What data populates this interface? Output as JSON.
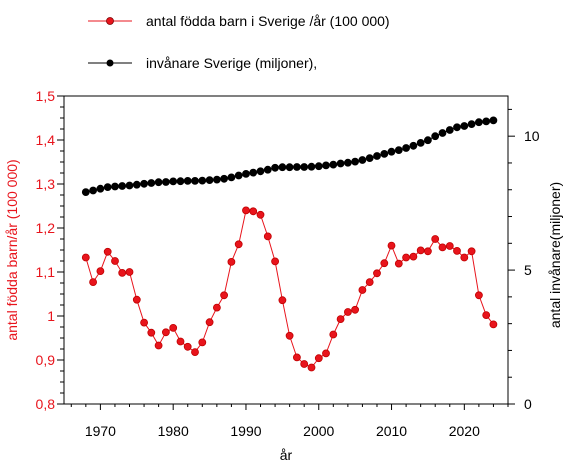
{
  "chart_data": {
    "type": "line",
    "xlabel": "år",
    "ylabel_left": "antal födda barn/år (100 000)",
    "ylabel_right": "antal invånare(miljoner)",
    "xlim": [
      1965,
      2026
    ],
    "ylim_left": [
      0.8,
      1.5
    ],
    "ylim_right": [
      0,
      11.5
    ],
    "x_ticks": [
      1970,
      1980,
      1990,
      2000,
      2010,
      2020
    ],
    "y_ticks_left": [
      "0,8",
      "0,9",
      "1",
      "1,1",
      "1,2",
      "1,3",
      "1,4",
      "1,5"
    ],
    "y_tick_values_left": [
      0.8,
      0.9,
      1.0,
      1.1,
      1.2,
      1.3,
      1.4,
      1.5
    ],
    "y_ticks_right": [
      "0",
      "5",
      "10"
    ],
    "y_tick_values_right": [
      0,
      5,
      10
    ],
    "legend_placement": "top-left",
    "grid": false,
    "colors": {
      "births": "#e8141c",
      "births_marker": "#c00000",
      "population": "#000000",
      "left_axis": "#e8141c"
    },
    "series": [
      {
        "name": "antal födda barn i Sverige /år (100 000)",
        "axis": "left",
        "x": [
          1968,
          1969,
          1970,
          1971,
          1972,
          1973,
          1974,
          1975,
          1976,
          1977,
          1978,
          1979,
          1980,
          1981,
          1982,
          1983,
          1984,
          1985,
          1986,
          1987,
          1988,
          1989,
          1990,
          1991,
          1992,
          1993,
          1994,
          1995,
          1996,
          1997,
          1998,
          1999,
          2000,
          2001,
          2002,
          2003,
          2004,
          2005,
          2006,
          2007,
          2008,
          2009,
          2010,
          2011,
          2012,
          2013,
          2014,
          2015,
          2016,
          2017,
          2018,
          2019,
          2020,
          2021,
          2022,
          2023,
          2024
        ],
        "values": [
          1.133,
          1.077,
          1.102,
          1.146,
          1.125,
          1.098,
          1.1,
          1.037,
          0.985,
          0.962,
          0.933,
          0.963,
          0.973,
          0.942,
          0.93,
          0.918,
          0.94,
          0.986,
          1.019,
          1.047,
          1.123,
          1.163,
          1.24,
          1.238,
          1.23,
          1.181,
          1.124,
          1.036,
          0.955,
          0.906,
          0.891,
          0.883,
          0.904,
          0.915,
          0.958,
          0.993,
          1.009,
          1.014,
          1.059,
          1.077,
          1.097,
          1.12,
          1.16,
          1.119,
          1.133,
          1.135,
          1.149,
          1.147,
          1.175,
          1.156,
          1.159,
          1.148,
          1.133,
          1.147,
          1.047,
          1.002,
          0.981
        ]
      },
      {
        "name": "invånare Sverige (miljoner),",
        "axis": "right",
        "x": [
          1968,
          1969,
          1970,
          1971,
          1972,
          1973,
          1974,
          1975,
          1976,
          1977,
          1978,
          1979,
          1980,
          1981,
          1982,
          1983,
          1984,
          1985,
          1986,
          1987,
          1988,
          1989,
          1990,
          1991,
          1992,
          1993,
          1994,
          1995,
          1996,
          1997,
          1998,
          1999,
          2000,
          2001,
          2002,
          2003,
          2004,
          2005,
          2006,
          2007,
          2008,
          2009,
          2010,
          2011,
          2012,
          2013,
          2014,
          2015,
          2016,
          2017,
          2018,
          2019,
          2020,
          2021,
          2022,
          2023,
          2024
        ],
        "values": [
          7.91,
          7.97,
          8.04,
          8.1,
          8.12,
          8.14,
          8.16,
          8.19,
          8.22,
          8.25,
          8.28,
          8.29,
          8.31,
          8.32,
          8.33,
          8.33,
          8.34,
          8.36,
          8.38,
          8.41,
          8.46,
          8.53,
          8.59,
          8.64,
          8.69,
          8.75,
          8.82,
          8.84,
          8.84,
          8.85,
          8.85,
          8.86,
          8.88,
          8.91,
          8.94,
          8.98,
          9.01,
          9.05,
          9.11,
          9.18,
          9.26,
          9.34,
          9.42,
          9.48,
          9.56,
          9.64,
          9.75,
          9.85,
          10.0,
          10.12,
          10.23,
          10.33,
          10.38,
          10.45,
          10.52,
          10.55,
          10.59
        ]
      }
    ]
  }
}
